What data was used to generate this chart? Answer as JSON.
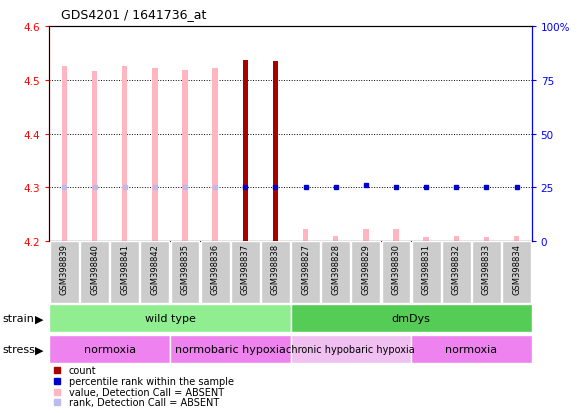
{
  "title": "GDS4201 / 1641736_at",
  "samples": [
    "GSM398839",
    "GSM398840",
    "GSM398841",
    "GSM398842",
    "GSM398835",
    "GSM398836",
    "GSM398837",
    "GSM398838",
    "GSM398827",
    "GSM398828",
    "GSM398829",
    "GSM398830",
    "GSM398831",
    "GSM398832",
    "GSM398833",
    "GSM398834"
  ],
  "ylim_left": [
    4.2,
    4.6
  ],
  "ylim_right": [
    0,
    100
  ],
  "yticks_left": [
    4.2,
    4.3,
    4.4,
    4.5,
    4.6
  ],
  "yticks_right": [
    0,
    25,
    50,
    75,
    100
  ],
  "value_bars": [
    4.525,
    4.516,
    4.526,
    4.522,
    4.518,
    4.521,
    4.537,
    4.535,
    4.222,
    4.21,
    4.222,
    4.222,
    4.208,
    4.21,
    4.208,
    4.21
  ],
  "value_absent": [
    true,
    true,
    true,
    true,
    true,
    true,
    false,
    false,
    true,
    true,
    true,
    true,
    true,
    true,
    true,
    true
  ],
  "rank_values": [
    25,
    25,
    25,
    25,
    25,
    25,
    25,
    25,
    25,
    25,
    26,
    25,
    25,
    25,
    25,
    25
  ],
  "rank_absent": [
    true,
    true,
    true,
    true,
    true,
    true,
    false,
    false,
    false,
    false,
    false,
    false,
    false,
    false,
    false,
    false
  ],
  "strain_groups": [
    {
      "label": "wild type",
      "start": 0,
      "end": 8,
      "color": "#90ee90"
    },
    {
      "label": "dmDys",
      "start": 8,
      "end": 16,
      "color": "#55cc55"
    }
  ],
  "stress_groups": [
    {
      "label": "normoxia",
      "start": 0,
      "end": 4,
      "color": "#ee82ee"
    },
    {
      "label": "normobaric hypoxia",
      "start": 4,
      "end": 8,
      "color": "#ee82ee"
    },
    {
      "label": "chronic hypobaric hypoxia",
      "start": 8,
      "end": 12,
      "color": "#f0c0f0"
    },
    {
      "label": "normoxia",
      "start": 12,
      "end": 16,
      "color": "#ee82ee"
    }
  ],
  "absent_bar_color": "#ffb6c1",
  "present_bar_color": "#aa0000",
  "absent_rank_color": "#bbbbee",
  "present_rank_color": "#0000cc",
  "bg_color": "#cccccc",
  "plot_bg": "#ffffff"
}
